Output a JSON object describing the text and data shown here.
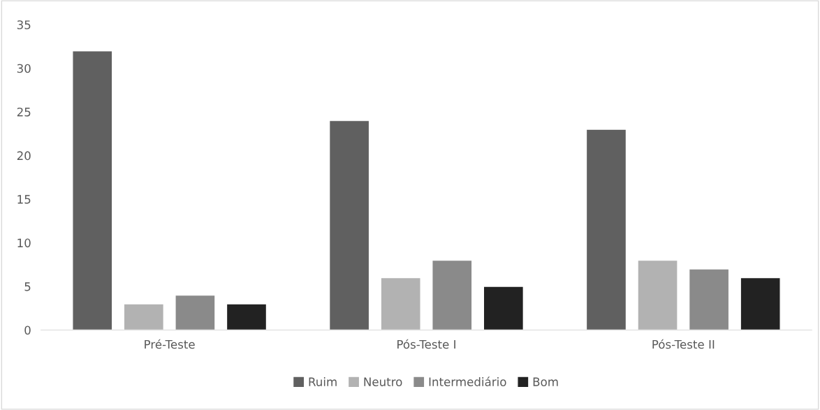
{
  "chart_data": {
    "type": "bar",
    "categories": [
      "Pré-Teste",
      "Pós-Teste I",
      "Pós-Teste II"
    ],
    "series": [
      {
        "name": "Ruim",
        "color": "#606060",
        "values": [
          32,
          24,
          23
        ]
      },
      {
        "name": "Neutro",
        "color": "#b2b2b2",
        "values": [
          3,
          6,
          8
        ]
      },
      {
        "name": "Intermediário",
        "color": "#8a8a8a",
        "values": [
          4,
          8,
          7
        ]
      },
      {
        "name": "Bom",
        "color": "#222222",
        "values": [
          3,
          5,
          6
        ]
      }
    ],
    "ylim": [
      0,
      35
    ],
    "yticks": [
      0,
      5,
      10,
      15,
      20,
      25,
      30,
      35
    ],
    "grid": false,
    "legend": "bottom"
  }
}
